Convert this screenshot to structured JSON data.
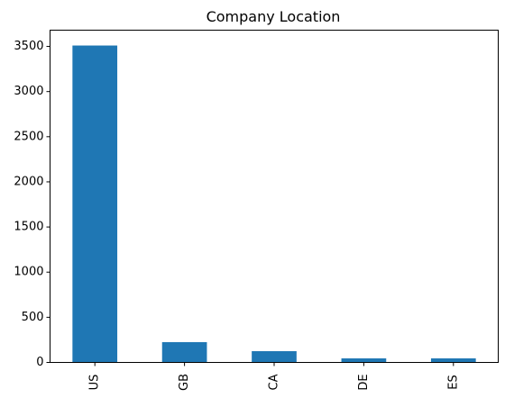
{
  "chart_data": {
    "type": "bar",
    "title": "Company Location",
    "xlabel": "",
    "ylabel": "",
    "categories": [
      "US",
      "GB",
      "CA",
      "DE",
      "ES"
    ],
    "values": [
      3510,
      225,
      125,
      45,
      45
    ],
    "ylim": [
      0,
      3680
    ],
    "yticks": [
      0,
      500,
      1000,
      1500,
      2000,
      2500,
      3000,
      3500
    ],
    "bar_color": "#1f77b4",
    "grid": false,
    "legend": "none"
  }
}
